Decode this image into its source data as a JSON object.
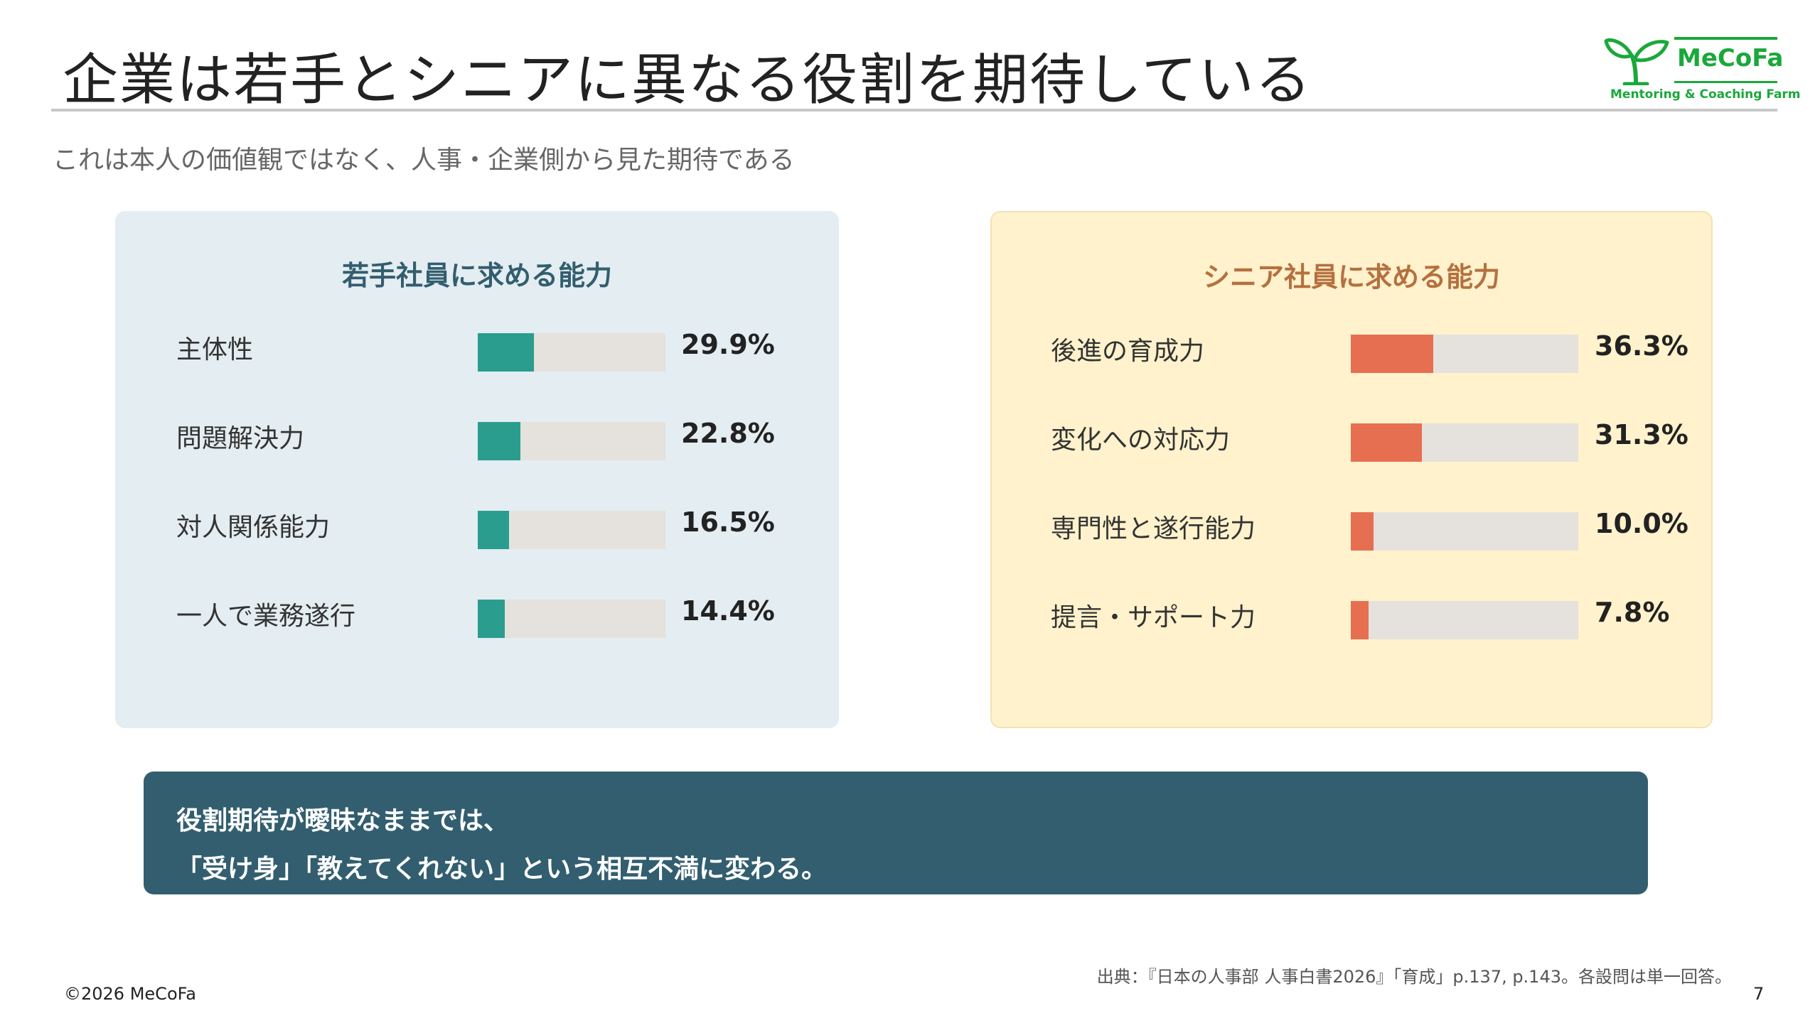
{
  "header": {
    "title": "企業は若手とシニアに異なる役割を期待している",
    "subtitle": "これは本人の価値観ではなく、人事・企業側から見た期待である"
  },
  "logo": {
    "brand": "MeCoFa",
    "tagline": "Mentoring & Coaching Farm",
    "color": "#1aa83a",
    "icon": "sprout-icon"
  },
  "chart_data": [
    {
      "type": "bar",
      "orientation": "horizontal",
      "title": "若手社員に求める能力",
      "categories": [
        "主体性",
        "問題解決力",
        "対人関係能力",
        "一人で業務遂行"
      ],
      "values": [
        29.9,
        22.8,
        16.5,
        14.4
      ],
      "value_labels": [
        "29.9%",
        "22.8%",
        "16.5%",
        "14.4%"
      ],
      "xlim": [
        0,
        100
      ],
      "unit": "%",
      "color": "#2a9d8f",
      "track_color": "#e5e1dc",
      "panel_color": "#e4edf1",
      "title_color": "#325e6f"
    },
    {
      "type": "bar",
      "orientation": "horizontal",
      "title": "シニア社員に求める能力",
      "categories": [
        "後進の育成力",
        "変化への対応力",
        "専門性と遂行能力",
        "提言・サポート力"
      ],
      "values": [
        36.3,
        31.3,
        10.0,
        7.8
      ],
      "value_labels": [
        "36.3%",
        "31.3%",
        "10.0%",
        "7.8%"
      ],
      "xlim": [
        0,
        100
      ],
      "unit": "%",
      "color": "#e76f51",
      "track_color": "#e5e1dc",
      "panel_color": "#fff2cc",
      "title_color": "#b5703f"
    }
  ],
  "callout": {
    "line1": "役割期待が曖昧なままでは、",
    "line2": "「受け身」「教えてくれない」という相互不満に変わる。",
    "background": "#325e6f"
  },
  "footer": {
    "source": "出典：『日本の人事部 人事白書2026』「育成」p.137, p.143。各設問は単一回答。",
    "copyright": "©2026 MeCoFa",
    "page_number": "7"
  }
}
